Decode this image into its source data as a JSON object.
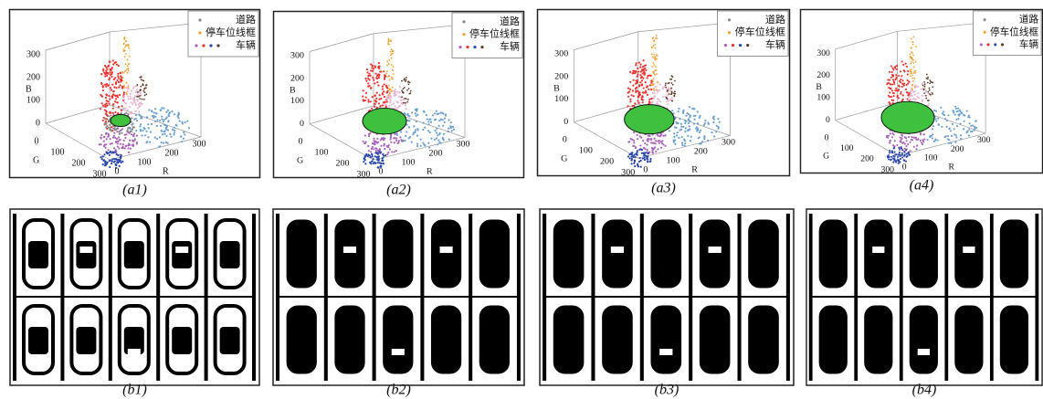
{
  "panels_a": [
    {
      "caption": "(a1)",
      "legend": [
        "道路",
        "停车位线框",
        "车辆"
      ],
      "b_label": "B",
      "b_ticks": [
        "300",
        "200",
        "100",
        "0"
      ],
      "g_label": "G",
      "g_ticks": [
        "0",
        "100",
        "200",
        "300"
      ],
      "r_label": "R",
      "r_ticks": [
        "0",
        "100",
        "200",
        "300"
      ]
    },
    {
      "caption": "(a2)",
      "legend": [
        "道路",
        "停车位线框",
        "车辆"
      ],
      "b_label": "B",
      "b_ticks": [
        "300",
        "200",
        "100",
        "0"
      ],
      "g_label": "G",
      "g_ticks": [
        "0",
        "100",
        "200",
        "300"
      ],
      "r_label": "R",
      "r_ticks": [
        "0",
        "100",
        "200",
        "300"
      ]
    },
    {
      "caption": "(a3)",
      "legend": [
        "道路",
        "停车位线框",
        "车辆"
      ],
      "b_label": "B",
      "b_ticks": [
        "300",
        "200",
        "100",
        "0"
      ],
      "g_label": "G",
      "g_ticks": [
        "0",
        "100",
        "200",
        "300"
      ],
      "r_label": "R",
      "r_ticks": [
        "0",
        "100",
        "200",
        "300"
      ]
    },
    {
      "caption": "(a4)",
      "legend": [
        "道路",
        "停车位线框",
        "车辆"
      ],
      "b_label": "B",
      "b_ticks": [
        "300",
        "200",
        "100",
        "0"
      ],
      "g_label": "G",
      "g_ticks": [
        "0",
        "100",
        "200",
        "300"
      ],
      "r_label": "R",
      "r_ticks": [
        "0",
        "100",
        "200",
        "300"
      ]
    }
  ],
  "panels_b": [
    {
      "caption": "(b1)"
    },
    {
      "caption": "(b2)"
    },
    {
      "caption": "(b3)"
    },
    {
      "caption": "(b4)"
    }
  ]
}
